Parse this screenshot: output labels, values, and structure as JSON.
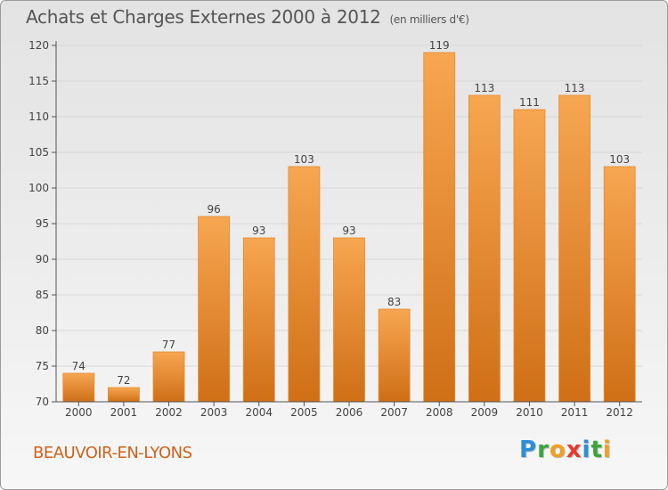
{
  "title": "Achats et Charges Externes 2000 à 2012",
  "subtitle": "(en milliers d'€)",
  "commune": "BEAUVOIR-EN-LYONS",
  "logo": {
    "text": "Proxiti",
    "letters": [
      {
        "ch": "P",
        "color": "#2a8fd6"
      },
      {
        "ch": "r",
        "color": "#3aa53a"
      },
      {
        "ch": "o",
        "color": "#f0a020"
      },
      {
        "ch": "x",
        "color": "#e53b2c"
      },
      {
        "ch": "i",
        "color": "#2a8fd6"
      },
      {
        "ch": "t",
        "color": "#3aa53a"
      },
      {
        "ch": "i",
        "color": "#f0a020"
      }
    ]
  },
  "colors": {
    "bar_top": "#f7a651",
    "bar_bottom": "#cf6f16",
    "bar_edge": "#e88a2e",
    "axis": "#555555",
    "grid": "#d8d8d8"
  },
  "chart_data": {
    "type": "bar",
    "categories": [
      "2000",
      "2001",
      "2002",
      "2003",
      "2004",
      "2005",
      "2006",
      "2007",
      "2008",
      "2009",
      "2010",
      "2011",
      "2012"
    ],
    "values": [
      74,
      72,
      77,
      96,
      93,
      103,
      93,
      83,
      119,
      113,
      111,
      113,
      103
    ],
    "ylim": [
      70,
      120
    ],
    "yticks": [
      70,
      75,
      80,
      85,
      90,
      95,
      100,
      105,
      110,
      115,
      120
    ],
    "grid": true,
    "data_labels": true
  }
}
